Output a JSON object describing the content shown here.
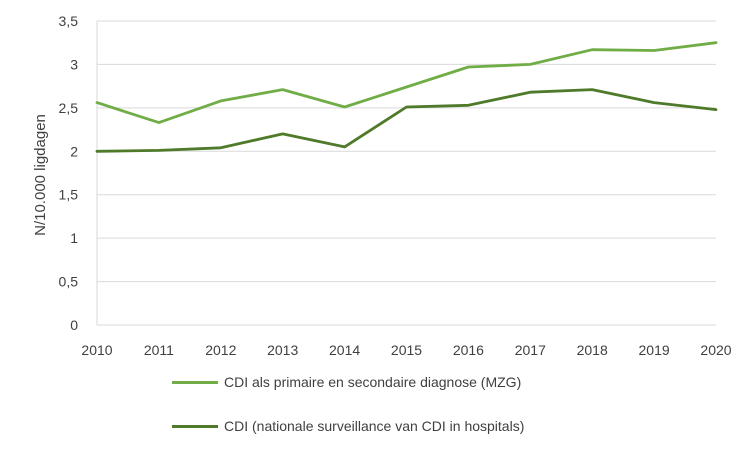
{
  "chart_data": {
    "type": "line",
    "title": "",
    "xlabel": "",
    "ylabel": "N/10.000 ligdagen",
    "x": [
      2010,
      2011,
      2012,
      2013,
      2014,
      2015,
      2016,
      2017,
      2018,
      2019,
      2020
    ],
    "x_tick_labels": [
      "2010",
      "2011",
      "2012",
      "2013",
      "2014",
      "2015",
      "2016",
      "2017",
      "2018",
      "2019",
      "2020"
    ],
    "ylim": [
      0,
      3.5
    ],
    "y_ticks": [
      0,
      0.5,
      1,
      1.5,
      2,
      2.5,
      3,
      3.5
    ],
    "y_tick_labels": [
      "0",
      "0,5",
      "1",
      "1,5",
      "2",
      "2,5",
      "3",
      "3,5"
    ],
    "grid": true,
    "legend_position": "bottom",
    "series": [
      {
        "name": "CDI als primaire en secondaire diagnose (MZG)",
        "color": "#70ad47",
        "values": [
          2.56,
          2.33,
          2.58,
          2.71,
          2.51,
          2.74,
          2.97,
          3.0,
          3.17,
          3.16,
          3.25
        ]
      },
      {
        "name": "CDI (nationale surveillance van CDI in hospitals)",
        "color": "#4e7a2a",
        "values": [
          2.0,
          2.01,
          2.04,
          2.2,
          2.05,
          2.51,
          2.53,
          2.68,
          2.71,
          2.56,
          2.48
        ]
      }
    ]
  }
}
